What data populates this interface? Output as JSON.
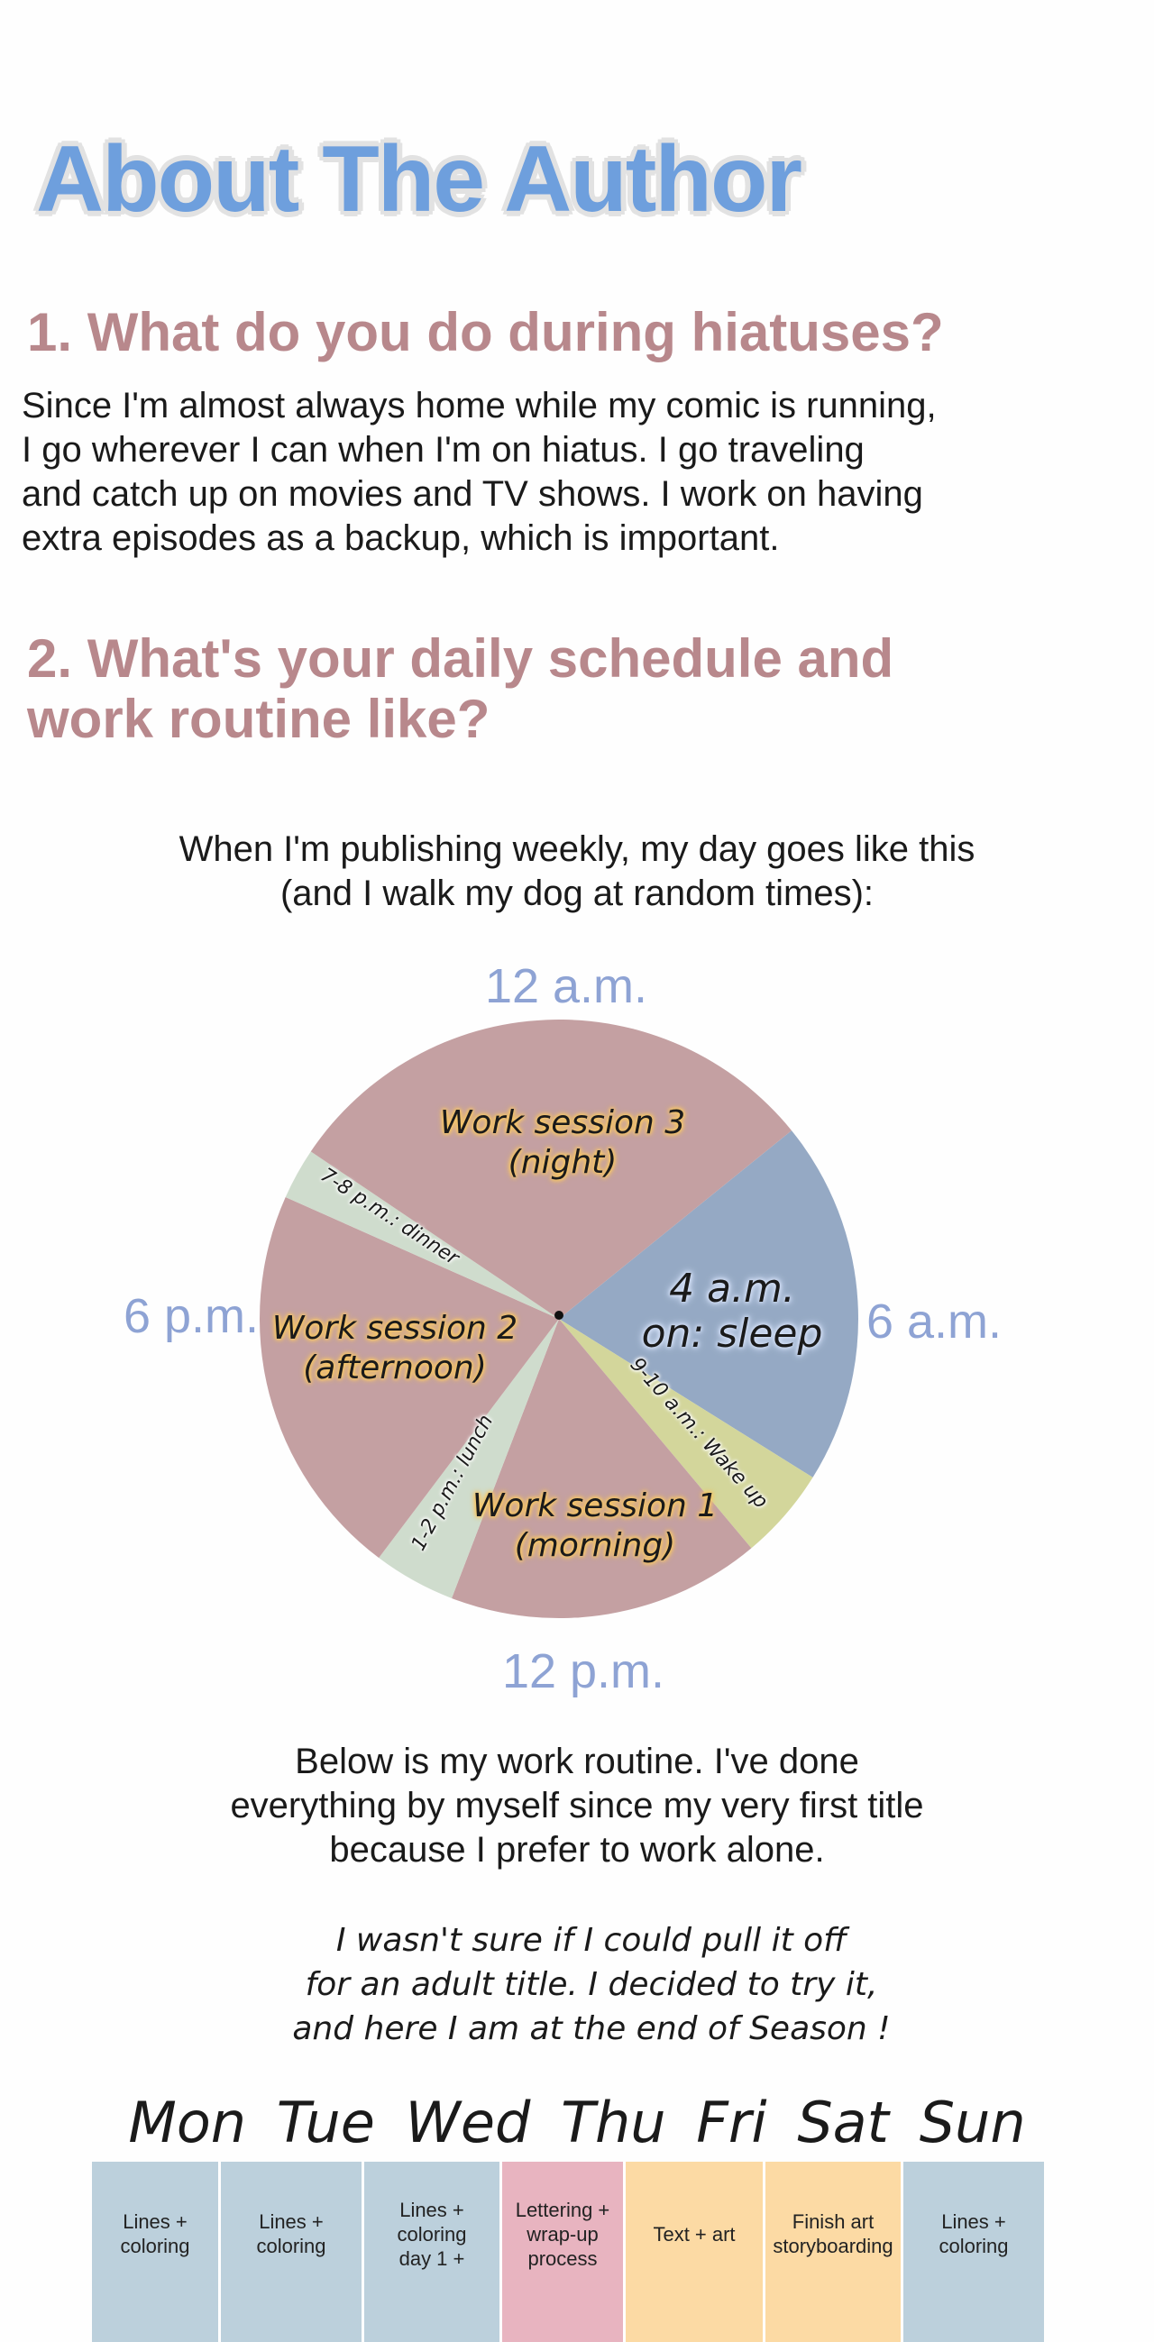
{
  "title": "About The Author",
  "q1": {
    "heading": "1. What do you do during hiatuses?",
    "lines": [
      "Since I'm almost always home while my comic is running,",
      "I go wherever I can when I'm on hiatus. I go traveling",
      "and catch up on movies and TV shows. I work on having",
      "extra episodes as a backup, which is important."
    ]
  },
  "q2": {
    "heading_lines": [
      "2. What's your daily schedule and",
      "work routine like?"
    ],
    "intro_lines": [
      "When I'm publishing weekly, my day goes like this",
      "(and I walk my dog at random times):"
    ]
  },
  "clock": {
    "top": "12 a.m.",
    "right": "6 a.m.",
    "bottom": "12 p.m.",
    "left": "6 p.m.",
    "label_color": "#8ea3d4",
    "slices": [
      {
        "key": "sleep",
        "label_lines": [
          "4 a.m.",
          "on: sleep"
        ],
        "color": "#95a9c4"
      },
      {
        "key": "wake",
        "label_lines": [
          "9-10 a.m.: Wake up"
        ],
        "color": "#d3d69b"
      },
      {
        "key": "ws1",
        "label_lines": [
          "Work session 1",
          "(morning)"
        ],
        "color": "#c4a0a2"
      },
      {
        "key": "lunch",
        "label_lines": [
          "1-2 p.m.: lunch"
        ],
        "color": "#cfdccd"
      },
      {
        "key": "ws2",
        "label_lines": [
          "Work session 2",
          "(afternoon)"
        ],
        "color": "#c4a0a2"
      },
      {
        "key": "dinner",
        "label_lines": [
          "7-8 p.m.: dinner"
        ],
        "color": "#cfdccd"
      },
      {
        "key": "ws3",
        "label_lines": [
          "Work session 3",
          "(night)"
        ],
        "color": "#c4a0a2"
      }
    ]
  },
  "routine": {
    "lines": [
      "Below is my work routine. I've done",
      "everything by myself since my very first title",
      "because I prefer to work alone."
    ],
    "hand_lines": [
      "I wasn't sure if I could pull it off",
      "for an adult title. I decided to try it,",
      "and here I am at the end of Season !"
    ]
  },
  "week": {
    "days": "Mon Tue Wed Thu Fri Sat Sun",
    "cells": [
      {
        "text": "Lines +\ncoloring",
        "color": "#bcd0dc"
      },
      {
        "text": "Lines +\ncoloring",
        "color": "#bcd0dc"
      },
      {
        "text": "Lines +\ncoloring\nday 1 +",
        "color": "#bcd0dc"
      },
      {
        "text": "Lettering +\nwrap-up\nprocess",
        "color": "#e8b4c0"
      },
      {
        "text": "Text + art",
        "color": "#fcdaa4"
      },
      {
        "text": "Finish art\nstoryboarding",
        "color": "#fcdaa4"
      },
      {
        "text": "Lines +\ncoloring",
        "color": "#bcd0dc"
      }
    ]
  }
}
